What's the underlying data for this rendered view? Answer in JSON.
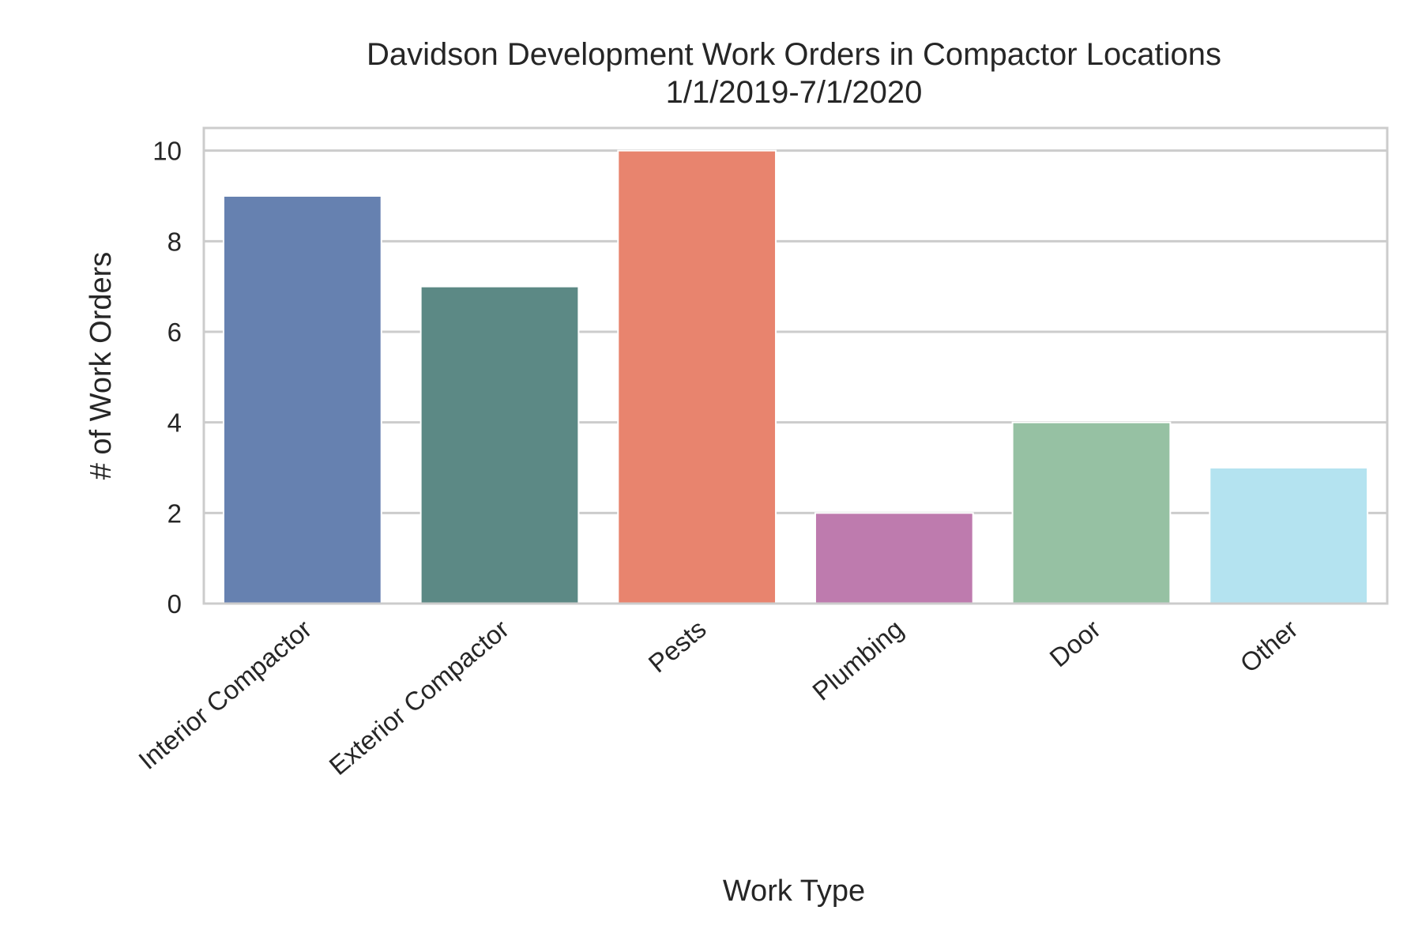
{
  "chart_data": {
    "type": "bar",
    "title": "Davidson Development Work Orders in Compactor Locations",
    "subtitle": "1/1/2019-7/1/2020",
    "xlabel": "Work Type",
    "ylabel": "# of Work Orders",
    "categories": [
      "Interior Compactor",
      "Exterior Compactor",
      "Pests",
      "Plumbing",
      "Door",
      "Other"
    ],
    "values": [
      9,
      7,
      10,
      2,
      4,
      3
    ],
    "colors": [
      "#6681B0",
      "#5C8985",
      "#E8846E",
      "#BE7BAE",
      "#96C1A3",
      "#B4E3F0"
    ],
    "ylim": [
      0,
      10.5
    ],
    "yticks": [
      0,
      2,
      4,
      6,
      8,
      10
    ],
    "grid": "horizontal",
    "legend": "none"
  }
}
